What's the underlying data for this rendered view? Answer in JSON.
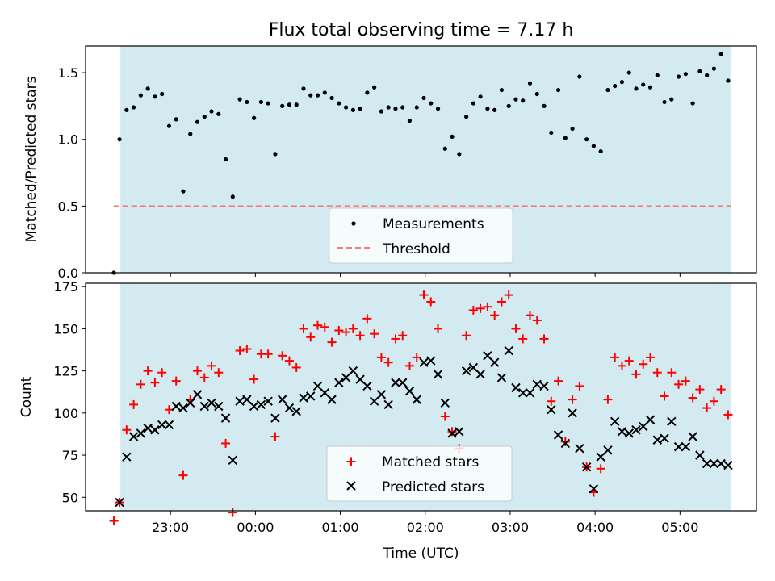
{
  "chart_data": [
    {
      "type": "scatter",
      "title": "Flux total observing time = 7.17 h",
      "xlabel": "",
      "ylabel": "Matched/Predicted stars",
      "ylim": [
        0,
        1.7
      ],
      "yticks": [
        "0.0",
        "0.5",
        "1.0",
        "1.5"
      ],
      "ytick_values": [
        0,
        0.5,
        1.0,
        1.5
      ],
      "x_unit": "hours since 22:00 UTC",
      "xlim": [
        22.0,
        5.9
      ],
      "observing_span": [
        22.41,
        5.6
      ],
      "threshold": {
        "name": "Threshold",
        "value": 0.5,
        "x_range": [
          22.33,
          5.6
        ],
        "color": "#f08080"
      },
      "legend": {
        "position": "lower-center",
        "entries": [
          "Measurements",
          "Threshold"
        ]
      },
      "series": [
        {
          "name": "Measurements",
          "color": "#000000",
          "marker": "dot",
          "x": [
            "22:20",
            "22:24",
            "22:29",
            "22:34",
            "22:39",
            "22:44",
            "22:49",
            "22:54",
            "22:59",
            "23:04",
            "23:09",
            "23:14",
            "23:19",
            "23:24",
            "23:29",
            "23:34",
            "23:39",
            "23:44",
            "23:49",
            "23:54",
            "23:59",
            "00:04",
            "00:09",
            "00:14",
            "00:19",
            "00:24",
            "00:29",
            "00:34",
            "00:39",
            "00:44",
            "00:49",
            "00:54",
            "00:59",
            "01:04",
            "01:09",
            "01:14",
            "01:19",
            "01:24",
            "01:29",
            "01:34",
            "01:39",
            "01:44",
            "01:49",
            "01:54",
            "01:59",
            "02:04",
            "02:09",
            "02:14",
            "02:19",
            "02:24",
            "02:29",
            "02:34",
            "02:39",
            "02:44",
            "02:49",
            "02:54",
            "02:59",
            "03:04",
            "03:09",
            "03:14",
            "03:19",
            "03:24",
            "03:29",
            "03:34",
            "03:39",
            "03:44",
            "03:49",
            "03:54",
            "03:59",
            "04:04",
            "04:09",
            "04:14",
            "04:19",
            "04:24",
            "04:29",
            "04:34",
            "04:39",
            "04:44",
            "04:49",
            "04:54",
            "04:59",
            "05:04",
            "05:09",
            "05:14",
            "05:19",
            "05:24",
            "05:29",
            "05:34"
          ],
          "values": [
            0.0,
            1.0,
            1.22,
            1.24,
            1.33,
            1.38,
            1.32,
            1.34,
            1.1,
            1.15,
            0.61,
            1.04,
            1.13,
            1.17,
            1.21,
            1.19,
            0.85,
            0.57,
            1.3,
            1.28,
            1.16,
            1.28,
            1.27,
            0.89,
            1.25,
            1.26,
            1.26,
            1.38,
            1.33,
            1.33,
            1.35,
            1.31,
            1.27,
            1.24,
            1.22,
            1.23,
            1.35,
            1.39,
            1.21,
            1.24,
            1.23,
            1.24,
            1.14,
            1.24,
            1.31,
            1.27,
            1.23,
            0.93,
            1.02,
            0.89,
            1.17,
            1.27,
            1.32,
            1.23,
            1.22,
            1.37,
            1.25,
            1.3,
            1.29,
            1.42,
            1.34,
            1.25,
            1.05,
            1.37,
            1.01,
            1.08,
            1.47,
            1.0,
            0.95,
            0.91,
            1.37,
            1.4,
            1.43,
            1.5,
            1.38,
            1.41,
            1.39,
            1.48,
            1.28,
            1.3,
            1.47,
            1.49,
            1.27,
            1.51,
            1.48,
            1.53,
            1.64,
            1.44
          ]
        }
      ]
    },
    {
      "type": "scatter",
      "title": "",
      "xlabel": "Time (UTC)",
      "ylabel": "Count",
      "ylim": [
        42,
        177
      ],
      "yticks": [
        "50",
        "75",
        "100",
        "125",
        "150",
        "175"
      ],
      "ytick_values": [
        50,
        75,
        100,
        125,
        150,
        175
      ],
      "xticks": [
        "23:00",
        "00:00",
        "01:00",
        "02:00",
        "03:00",
        "04:00",
        "05:00"
      ],
      "legend": {
        "position": "lower-center",
        "entries": [
          "Matched stars",
          "Predicted stars"
        ]
      },
      "series": [
        {
          "name": "Matched stars",
          "color": "#ff0000",
          "marker": "plus",
          "x": [
            "22:20",
            "22:24",
            "22:29",
            "22:34",
            "22:39",
            "22:44",
            "22:49",
            "22:54",
            "22:59",
            "23:04",
            "23:09",
            "23:14",
            "23:19",
            "23:24",
            "23:29",
            "23:34",
            "23:39",
            "23:44",
            "23:49",
            "23:54",
            "23:59",
            "00:04",
            "00:09",
            "00:14",
            "00:19",
            "00:24",
            "00:29",
            "00:34",
            "00:39",
            "00:44",
            "00:49",
            "00:54",
            "00:59",
            "01:04",
            "01:09",
            "01:14",
            "01:19",
            "01:24",
            "01:29",
            "01:34",
            "01:39",
            "01:44",
            "01:49",
            "01:54",
            "01:59",
            "02:04",
            "02:09",
            "02:14",
            "02:19",
            "02:24",
            "02:29",
            "02:34",
            "02:39",
            "02:44",
            "02:49",
            "02:54",
            "02:59",
            "03:04",
            "03:09",
            "03:14",
            "03:19",
            "03:24",
            "03:29",
            "03:34",
            "03:39",
            "03:44",
            "03:49",
            "03:54",
            "03:59",
            "04:04",
            "04:09",
            "04:14",
            "04:19",
            "04:24",
            "04:29",
            "04:34",
            "04:39",
            "04:44",
            "04:49",
            "04:54",
            "04:59",
            "05:04",
            "05:09",
            "05:14",
            "05:19",
            "05:24",
            "05:29",
            "05:34"
          ],
          "values": [
            36,
            47,
            90,
            105,
            117,
            125,
            118,
            124,
            102,
            119,
            63,
            108,
            125,
            121,
            128,
            124,
            82,
            41,
            137,
            138,
            120,
            135,
            135,
            86,
            134,
            131,
            127,
            150,
            145,
            152,
            151,
            142,
            149,
            148,
            150,
            146,
            156,
            147,
            133,
            130,
            144,
            146,
            128,
            133,
            170,
            166,
            150,
            98,
            89,
            79,
            146,
            161,
            162,
            163,
            158,
            166,
            170,
            150,
            144,
            158,
            155,
            144,
            107,
            119,
            83,
            108,
            116,
            68,
            53,
            67,
            108,
            133,
            128,
            131,
            123,
            129,
            133,
            124,
            110,
            124,
            117,
            119,
            109,
            114,
            103,
            107,
            114,
            99
          ]
        },
        {
          "name": "Predicted stars",
          "color": "#000000",
          "marker": "x",
          "x": [
            "22:24",
            "22:29",
            "22:34",
            "22:39",
            "22:44",
            "22:49",
            "22:54",
            "22:59",
            "23:04",
            "23:09",
            "23:14",
            "23:19",
            "23:24",
            "23:29",
            "23:34",
            "23:39",
            "23:44",
            "23:49",
            "23:54",
            "23:59",
            "00:04",
            "00:09",
            "00:14",
            "00:19",
            "00:24",
            "00:29",
            "00:34",
            "00:39",
            "00:44",
            "00:49",
            "00:54",
            "00:59",
            "01:04",
            "01:09",
            "01:14",
            "01:19",
            "01:24",
            "01:29",
            "01:34",
            "01:39",
            "01:44",
            "01:49",
            "01:54",
            "01:59",
            "02:04",
            "02:09",
            "02:14",
            "02:19",
            "02:24",
            "02:29",
            "02:34",
            "02:39",
            "02:44",
            "02:49",
            "02:54",
            "02:59",
            "03:04",
            "03:09",
            "03:14",
            "03:19",
            "03:24",
            "03:29",
            "03:34",
            "03:39",
            "03:44",
            "03:49",
            "03:54",
            "03:59",
            "04:04",
            "04:09",
            "04:14",
            "04:19",
            "04:24",
            "04:29",
            "04:34",
            "04:39",
            "04:44",
            "04:49",
            "04:54",
            "04:59",
            "05:04",
            "05:09",
            "05:14",
            "05:19",
            "05:24",
            "05:29",
            "05:34"
          ],
          "values": [
            47,
            74,
            86,
            88,
            91,
            90,
            93,
            93,
            104,
            103,
            106,
            111,
            104,
            106,
            104,
            97,
            72,
            107,
            108,
            104,
            105,
            107,
            97,
            108,
            103,
            101,
            109,
            110,
            116,
            112,
            108,
            118,
            121,
            125,
            120,
            116,
            107,
            111,
            105,
            118,
            118,
            113,
            108,
            130,
            131,
            123,
            106,
            88,
            89,
            125,
            127,
            123,
            134,
            130,
            121,
            137,
            115,
            112,
            112,
            117,
            116,
            102,
            87,
            82,
            100,
            79,
            68,
            55,
            74,
            78,
            95,
            89,
            88,
            90,
            92,
            96,
            84,
            85,
            95,
            80,
            80,
            86,
            75,
            70,
            70,
            70,
            69
          ]
        }
      ]
    }
  ]
}
